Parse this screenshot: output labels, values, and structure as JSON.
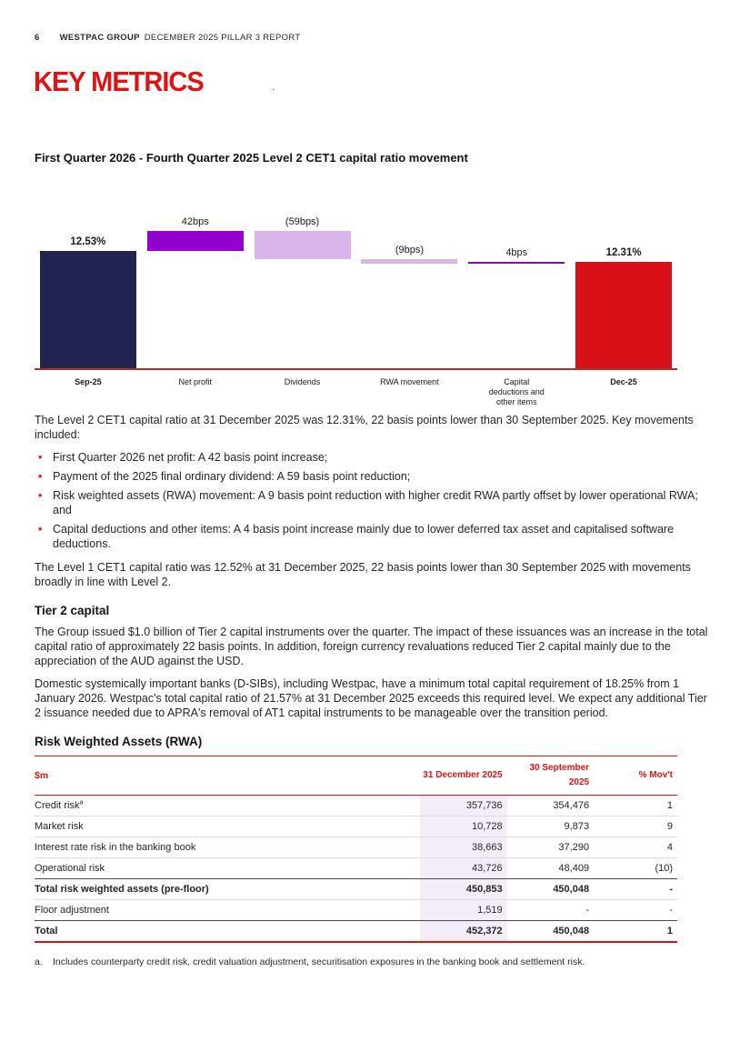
{
  "page": {
    "number": "6",
    "brand": "WESTPAC GROUP",
    "report_title": "DECEMBER 2025 PILLAR 3 REPORT",
    "heading": "KEY METRICS",
    "stray_mark": "."
  },
  "chart_data": {
    "type": "waterfall",
    "title": "First Quarter 2026 - Fourth Quarter 2025 Level 2 CET1 capital ratio movement",
    "unit": "CET1 capital ratio %",
    "ylim": [
      10.1,
      13.4
    ],
    "colors": {
      "axis": "#a8322c",
      "accent_red": "#dc1414",
      "navy": "#23234f",
      "purple": "#9201cd",
      "lavender": "#dab5ec",
      "highlight": "#f4edf9"
    },
    "bars": [
      {
        "label": "Sep-25",
        "kind": "total",
        "value": 12.53,
        "display": "12.53%",
        "color": "#23234f"
      },
      {
        "label": "Net profit",
        "kind": "delta",
        "value": 0.42,
        "display": "42bps",
        "color": "#9201cd"
      },
      {
        "label": "Dividends",
        "kind": "delta",
        "value": -0.59,
        "display": "(59bps)",
        "color": "#dab5ec"
      },
      {
        "label": "RWA movement",
        "kind": "delta",
        "value": -0.09,
        "display": "(9bps)",
        "color": "#dab5ec"
      },
      {
        "label": "Capital\ndeductions and\nother items",
        "kind": "delta",
        "value": 0.04,
        "display": "4bps",
        "color": "#9201cd"
      },
      {
        "label": "Dec-25",
        "kind": "total",
        "value": 12.31,
        "display": "12.31%",
        "color": "#d81118"
      }
    ]
  },
  "body": {
    "para1": "The Level 2 CET1 capital ratio at 31 December 2025 was 12.31%, 22 basis points lower than 30 September 2025. Key movements included:",
    "bullets": [
      "First Quarter 2026 net profit: A 42 basis point increase;",
      "Payment of the 2025 final ordinary dividend: A 59 basis point reduction;",
      "Risk weighted assets (RWA) movement: A 9 basis point reduction with higher credit RWA partly offset by lower operational RWA; and",
      "Capital deductions and other items: A 4 basis point increase mainly due to lower deferred tax asset and capitalised software deductions."
    ],
    "para2": "The Level 1 CET1 capital ratio was 12.52% at 31 December 2025, 22 basis points lower than 30 September 2025 with movements broadly in line with Level 2.",
    "tier2_heading": "Tier 2 capital",
    "tier2_para1": "The Group issued $1.0 billion of Tier 2 capital instruments over the quarter. The impact of these issuances was an increase in the total capital ratio of approximately 22 basis points. In addition, foreign currency revaluations reduced Tier 2 capital mainly due to the appreciation of the AUD against the USD.",
    "tier2_para2": "Domestic systemically important banks (D-SIBs), including Westpac, have a minimum total capital requirement of 18.25% from 1 January 2026. Westpac's total capital ratio of 21.57% at 31 December 2025 exceeds this required level. We expect any additional Tier 2 issuance needed due to APRA's removal of AT1 capital instruments to be manageable over the transition period.",
    "rwa_heading": "Risk Weighted Assets (RWA)"
  },
  "table": {
    "headers": [
      "$m",
      "31 December 2025",
      "30 September 2025",
      "% Mov't"
    ],
    "rows": [
      {
        "label": "Credit risk",
        "sup": "a",
        "values": [
          "357,736",
          "354,476",
          "1"
        ],
        "bold": false,
        "border_bottom": "light"
      },
      {
        "label": "Market risk",
        "values": [
          "10,728",
          "9,873",
          "9"
        ],
        "bold": false,
        "border_bottom": "light"
      },
      {
        "label": "Interest rate risk in the banking book",
        "values": [
          "38,663",
          "37,290",
          "4"
        ],
        "bold": false,
        "border_bottom": "light"
      },
      {
        "label": "Operational risk",
        "values": [
          "43,726",
          "48,409",
          "(10)"
        ],
        "bold": false,
        "border_bottom": "dark"
      },
      {
        "label": "Total risk weighted assets (pre-floor)",
        "values": [
          "450,853",
          "450,048",
          "-"
        ],
        "bold": true,
        "border_bottom": "light"
      },
      {
        "label": "Floor adjustment",
        "values": [
          "1,519",
          "-",
          "-"
        ],
        "bold": false,
        "border_bottom": "dark"
      },
      {
        "label": "Total",
        "values": [
          "452,372",
          "450,048",
          "1"
        ],
        "bold": true,
        "border_bottom": "red"
      }
    ],
    "footnote_marker": "a.",
    "footnote_text": "Includes counterparty credit risk, credit valuation adjustment, securitisation exposures in the banking book and settlement risk."
  }
}
